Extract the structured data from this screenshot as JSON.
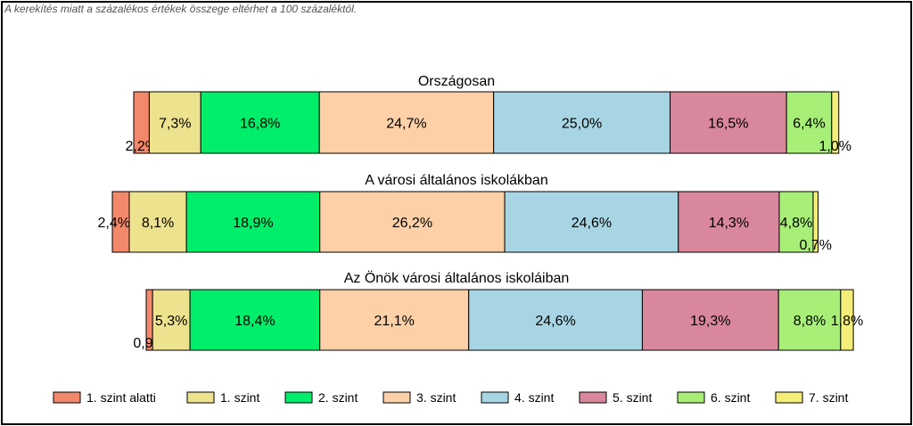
{
  "note": "A kerekítés miatt a  százalékos értékek összege eltérhet a 100 százaléktól.",
  "chart_data": {
    "type": "bar",
    "stacked": true,
    "orientation": "horizontal",
    "categories": [
      "Országosan",
      "A városi általános iskolákban",
      "Az Önök városi általános iskoláiban"
    ],
    "series": [
      {
        "name": "1. szint alatti",
        "color": "#f4886a",
        "values": [
          2.2,
          2.4,
          0.9
        ],
        "labels": [
          "2,2%",
          "2,4%",
          "0,9%"
        ]
      },
      {
        "name": "1. szint",
        "color": "#ede28e",
        "values": [
          7.3,
          8.1,
          5.3
        ],
        "labels": [
          "7,3%",
          "8,1%",
          "5,3%"
        ]
      },
      {
        "name": "2. szint",
        "color": "#00ee6a",
        "values": [
          16.8,
          18.9,
          18.4
        ],
        "labels": [
          "16,8%",
          "18,9%",
          "18,4%"
        ]
      },
      {
        "name": "3. szint",
        "color": "#fdd0a8",
        "values": [
          24.7,
          26.2,
          21.1
        ],
        "labels": [
          "24,7%",
          "26,2%",
          "21,1%"
        ]
      },
      {
        "name": "4. szint",
        "color": "#a8d5e4",
        "values": [
          25.0,
          24.6,
          24.6
        ],
        "labels": [
          "25,0%",
          "24,6%",
          "24,6%"
        ]
      },
      {
        "name": "5. szint",
        "color": "#d9879c",
        "values": [
          16.5,
          14.3,
          19.3
        ],
        "labels": [
          "16,5%",
          "14,3%",
          "19,3%"
        ]
      },
      {
        "name": "6. szint",
        "color": "#a8ef78",
        "values": [
          6.4,
          4.8,
          8.8
        ],
        "labels": [
          "6,4%",
          "4,8%",
          "8,8%"
        ]
      },
      {
        "name": "7. szint",
        "color": "#f4ee78",
        "values": [
          1.0,
          0.7,
          1.8
        ],
        "labels": [
          "1,0%",
          "0,7%",
          "1,8%"
        ]
      }
    ],
    "legend_position": "bottom",
    "grid": false
  }
}
